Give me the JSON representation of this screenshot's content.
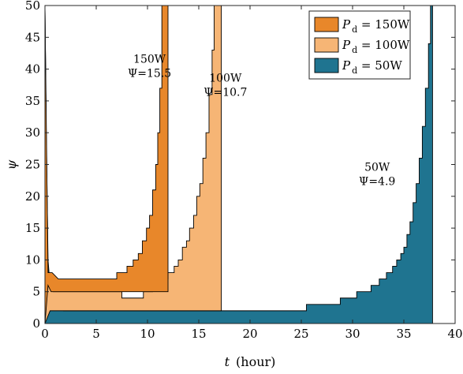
{
  "chart_data": {
    "type": "area",
    "xlabel_symbol": "t",
    "xlabel_unit": "(hour)",
    "ylabel": "ψ",
    "xlim": [
      0,
      40
    ],
    "ylim": [
      0,
      50
    ],
    "xticks": [
      "0",
      "5",
      "10",
      "15",
      "20",
      "25",
      "30",
      "35",
      "40"
    ],
    "yticks": [
      "0",
      "5",
      "10",
      "15",
      "20",
      "25",
      "30",
      "35",
      "40",
      "45",
      "50"
    ],
    "legend_position": "top-right",
    "legend": [
      {
        "prefix": "P",
        "subscript": "d",
        "suffix": " = 150W",
        "color": "#E8872A"
      },
      {
        "prefix": "P",
        "subscript": "d",
        "suffix": " = 100W",
        "color": "#F6B575"
      },
      {
        "prefix": "P",
        "subscript": "d",
        "suffix": " = 50W",
        "color": "#1F7490"
      }
    ],
    "annotations": [
      {
        "line1": "150W",
        "line2": "Ψ=15.5",
        "x": 10.2,
        "y": 41
      },
      {
        "line1": "100W",
        "line2": "Ψ=10.7",
        "x": 17.6,
        "y": 38
      },
      {
        "line1": "50W",
        "line2": "Ψ=4.9",
        "x": 32.4,
        "y": 24
      }
    ],
    "series": [
      {
        "name": "Pd = 50W",
        "color": "#1F7490",
        "upper": [
          [
            0,
            50
          ],
          [
            0.1,
            33
          ],
          [
            0.3,
            10
          ],
          [
            0.5,
            6
          ],
          [
            1.0,
            4
          ],
          [
            1.8,
            2
          ],
          [
            25.5,
            2
          ],
          [
            25.5,
            3
          ],
          [
            28.8,
            3
          ],
          [
            28.8,
            4
          ],
          [
            30.4,
            4
          ],
          [
            30.4,
            5
          ],
          [
            31.8,
            5
          ],
          [
            31.8,
            6
          ],
          [
            32.6,
            6
          ],
          [
            32.6,
            7
          ],
          [
            33.3,
            7
          ],
          [
            33.3,
            8
          ],
          [
            33.9,
            8
          ],
          [
            33.9,
            9
          ],
          [
            34.3,
            9
          ],
          [
            34.3,
            10
          ],
          [
            34.7,
            10
          ],
          [
            34.7,
            11
          ],
          [
            35.0,
            11
          ],
          [
            35.0,
            12
          ],
          [
            35.3,
            12
          ],
          [
            35.3,
            14
          ],
          [
            35.6,
            14
          ],
          [
            35.6,
            16
          ],
          [
            35.9,
            16
          ],
          [
            35.9,
            19
          ],
          [
            36.2,
            19
          ],
          [
            36.2,
            22
          ],
          [
            36.5,
            22
          ],
          [
            36.5,
            26
          ],
          [
            36.8,
            26
          ],
          [
            36.8,
            31
          ],
          [
            37.1,
            31
          ],
          [
            37.1,
            37
          ],
          [
            37.4,
            37
          ],
          [
            37.4,
            44
          ],
          [
            37.6,
            44
          ],
          [
            37.6,
            50
          ],
          [
            37.8,
            50
          ]
        ],
        "lower": [
          [
            0,
            0
          ],
          [
            37.8,
            0
          ]
        ]
      },
      {
        "name": "Pd = 100W",
        "color": "#F6B575",
        "upper": [
          [
            0,
            50
          ],
          [
            0.25,
            9
          ],
          [
            0.45,
            6
          ],
          [
            0.8,
            5
          ],
          [
            7.5,
            5
          ],
          [
            7.5,
            4
          ],
          [
            9.6,
            4
          ],
          [
            9.6,
            5
          ],
          [
            10.5,
            5
          ],
          [
            10.5,
            6
          ],
          [
            11.0,
            6
          ],
          [
            11.0,
            7
          ],
          [
            12.0,
            7
          ],
          [
            12.0,
            8
          ],
          [
            12.6,
            8
          ],
          [
            12.6,
            9
          ],
          [
            13.0,
            9
          ],
          [
            13.0,
            10
          ],
          [
            13.4,
            10
          ],
          [
            13.4,
            12
          ],
          [
            13.8,
            12
          ],
          [
            13.8,
            13
          ],
          [
            14.1,
            13
          ],
          [
            14.1,
            15
          ],
          [
            14.5,
            15
          ],
          [
            14.5,
            17
          ],
          [
            14.8,
            17
          ],
          [
            14.8,
            20
          ],
          [
            15.1,
            20
          ],
          [
            15.1,
            22
          ],
          [
            15.4,
            22
          ],
          [
            15.4,
            26
          ],
          [
            15.7,
            26
          ],
          [
            15.7,
            30
          ],
          [
            16.0,
            30
          ],
          [
            16.0,
            36
          ],
          [
            16.3,
            36
          ],
          [
            16.3,
            43
          ],
          [
            16.5,
            43
          ],
          [
            16.5,
            50
          ],
          [
            17.2,
            50
          ],
          [
            17.2,
            2
          ]
        ],
        "lower": [
          [
            0,
            0
          ],
          [
            0.5,
            2
          ],
          [
            1.8,
            2
          ],
          [
            17.2,
            2
          ]
        ]
      },
      {
        "name": "Pd = 150W",
        "color": "#E8872A",
        "upper": [
          [
            0,
            50
          ],
          [
            0.3,
            8
          ],
          [
            0.7,
            8
          ],
          [
            1.3,
            7
          ],
          [
            7.0,
            7
          ],
          [
            7.0,
            8
          ],
          [
            8.0,
            8
          ],
          [
            8.0,
            9
          ],
          [
            8.6,
            9
          ],
          [
            8.6,
            10
          ],
          [
            9.1,
            10
          ],
          [
            9.1,
            11
          ],
          [
            9.5,
            11
          ],
          [
            9.5,
            13
          ],
          [
            9.9,
            13
          ],
          [
            9.9,
            15
          ],
          [
            10.2,
            15
          ],
          [
            10.2,
            17
          ],
          [
            10.5,
            17
          ],
          [
            10.5,
            21
          ],
          [
            10.8,
            21
          ],
          [
            10.8,
            25
          ],
          [
            11.0,
            25
          ],
          [
            11.0,
            30
          ],
          [
            11.2,
            30
          ],
          [
            11.2,
            37
          ],
          [
            11.4,
            37
          ],
          [
            11.4,
            50
          ],
          [
            12.0,
            50
          ],
          [
            12.0,
            5
          ]
        ],
        "lower": [
          [
            0,
            0
          ],
          [
            0.3,
            6
          ],
          [
            0.6,
            5
          ],
          [
            12.0,
            5
          ]
        ]
      }
    ]
  }
}
